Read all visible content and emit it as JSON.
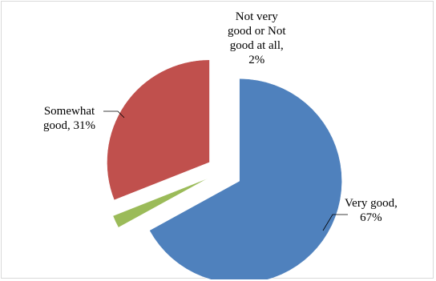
{
  "chart_data": {
    "type": "pie",
    "title": "",
    "slices": [
      {
        "name": "Very good",
        "value": 67,
        "label": "Very good,\n67%",
        "color": "#4f81bd"
      },
      {
        "name": "Not very good or Not good at all",
        "value": 2,
        "label": "Not very\ngood or Not\ngood at all,\n2%",
        "color": "#9bbb59"
      },
      {
        "name": "Somewhat good",
        "value": 31,
        "label": "Somewhat\ngood, 31%",
        "color": "#c0504d"
      }
    ],
    "legend": "none",
    "exploded": true
  }
}
